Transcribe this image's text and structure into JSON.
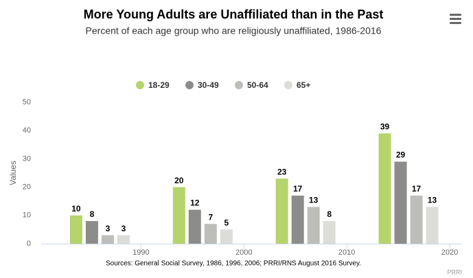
{
  "chart_data": {
    "type": "bar",
    "title": "More Young Adults are Unaffiliated than in the Past",
    "subtitle": "Percent of each age group who are religiously unaffiliated, 1986-2016",
    "y_label": "Values",
    "x": [
      1986,
      1996,
      2006,
      2016
    ],
    "series": [
      {
        "name": "18-29",
        "color": "#b5d46c",
        "values": [
          10,
          20,
          23,
          39
        ]
      },
      {
        "name": "30-49",
        "color": "#8c8c8a",
        "values": [
          8,
          12,
          17,
          29
        ]
      },
      {
        "name": "50-64",
        "color": "#bdbdb9",
        "values": [
          3,
          7,
          13,
          17
        ]
      },
      {
        "name": "65+",
        "color": "#dcdcd8",
        "values": [
          3,
          5,
          8,
          13
        ]
      }
    ],
    "xlim": [
      1980.3,
      2021.2
    ],
    "xticks": [
      1990,
      2000,
      2010,
      2020
    ],
    "ylim": [
      0,
      50
    ],
    "yticks": [
      0,
      10,
      20,
      30,
      40,
      50
    ],
    "grid": false,
    "legend": "top",
    "caption": "Sources: General Social Survey, 1986, 1996, 2006; PRRI/RNS August 2016 Survey.",
    "credit": "PRRI"
  }
}
